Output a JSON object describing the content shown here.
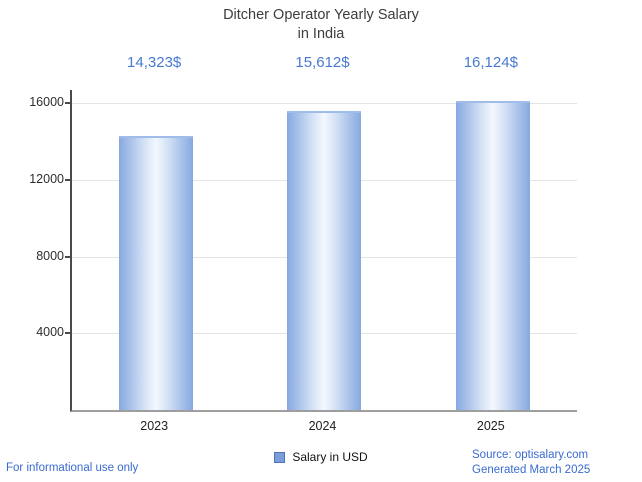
{
  "header": {
    "title_line1": "Ditcher Operator Yearly Salary",
    "title_line2": "in India"
  },
  "chart_data": {
    "type": "bar",
    "title": "Ditcher Operator Yearly Salary in India",
    "categories": [
      "2023",
      "2024",
      "2025"
    ],
    "values": [
      14323,
      15612,
      16124
    ],
    "value_labels": [
      "14,323$",
      "15,612$",
      "16,124$"
    ],
    "xlabel": "",
    "ylabel": "",
    "yticks": [
      4000,
      8000,
      12000,
      16000
    ],
    "ylim": [
      0,
      16700
    ],
    "grid": true,
    "legend": [
      "Salary in USD"
    ],
    "legend_position": "bottom",
    "bar_color": "#86a8e0",
    "bar_mid": "#cfdef4",
    "bar_highlight": "#f4f8fe"
  },
  "footer": {
    "disclaimer": "For informational use only",
    "source": "Source: optisalary.com",
    "generated": "Generated March 2025"
  },
  "colors": {
    "accent_text": "#4879d2",
    "link_text": "#3a6bd0",
    "title_text": "#3d3d3d",
    "legend_swatch": "#7b9ddb",
    "gridline": "#e4e4e4"
  }
}
